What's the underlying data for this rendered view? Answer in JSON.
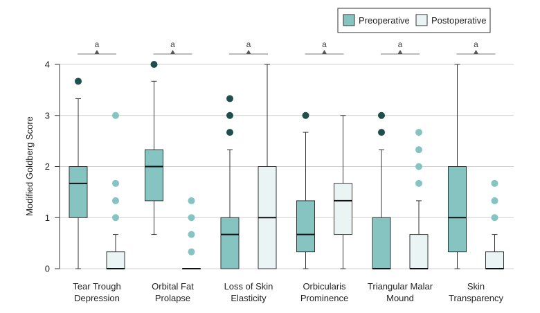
{
  "chart_data": {
    "type": "boxplot",
    "ylabel": "Modified Goldberg Score",
    "ylim": [
      0,
      4
    ],
    "yticks": [
      0,
      1,
      2,
      3,
      4
    ],
    "grid": true,
    "legend_position": "top-right",
    "significance_label": "a",
    "categories": [
      [
        "Tear Trough",
        "Depression"
      ],
      [
        "Orbital Fat",
        "Prolapse"
      ],
      [
        "Loss of Skin",
        "Elasticity"
      ],
      [
        "Orbicularis",
        "Prominence"
      ],
      [
        "Triangular Malar",
        "Mound"
      ],
      [
        "Skin",
        "Transparency"
      ]
    ],
    "series": [
      {
        "name": "Preoperative",
        "color": "#86c4c2",
        "outlier_color": "#1f4e4c",
        "boxes": [
          {
            "min": 0,
            "q1": 1,
            "median": 1.67,
            "q3": 2,
            "max": 3.33,
            "outliers": [
              3.67
            ]
          },
          {
            "min": 0.67,
            "q1": 1.33,
            "median": 2,
            "q3": 2.33,
            "max": 3.67,
            "outliers": [
              4
            ]
          },
          {
            "min": 0,
            "q1": 0,
            "median": 0.67,
            "q3": 1,
            "max": 2.33,
            "outliers": [
              2.67,
              3,
              3.33
            ]
          },
          {
            "min": 0,
            "q1": 0.33,
            "median": 0.67,
            "q3": 1.33,
            "max": 2.67,
            "outliers": [
              3
            ]
          },
          {
            "min": 0,
            "q1": 0,
            "median": 0,
            "q3": 1,
            "max": 2.33,
            "outliers": [
              2.67,
              3
            ]
          },
          {
            "min": 0,
            "q1": 0.33,
            "median": 1,
            "q3": 2,
            "max": 4,
            "outliers": []
          }
        ]
      },
      {
        "name": "Postoperative",
        "color": "#eaf4f4",
        "outlier_color": "#86c4c2",
        "boxes": [
          {
            "min": 0,
            "q1": 0,
            "median": 0,
            "q3": 0.33,
            "max": 0.67,
            "outliers": [
              1,
              1.33,
              1.67,
              3
            ]
          },
          {
            "min": 0,
            "q1": 0,
            "median": 0,
            "q3": 0,
            "max": 0,
            "outliers": [
              0.33,
              0.67,
              1,
              1.33
            ]
          },
          {
            "min": 0,
            "q1": 0,
            "median": 1,
            "q3": 2,
            "max": 4,
            "outliers": []
          },
          {
            "min": 0,
            "q1": 0.67,
            "median": 1.33,
            "q3": 1.67,
            "max": 3,
            "outliers": []
          },
          {
            "min": 0,
            "q1": 0,
            "median": 0,
            "q3": 0.67,
            "max": 1.33,
            "outliers": [
              1.67,
              2,
              2.33,
              2.67
            ]
          },
          {
            "min": 0,
            "q1": 0,
            "median": 0,
            "q3": 0.33,
            "max": 0.67,
            "outliers": [
              1,
              1.33,
              1.67
            ]
          }
        ]
      }
    ]
  }
}
